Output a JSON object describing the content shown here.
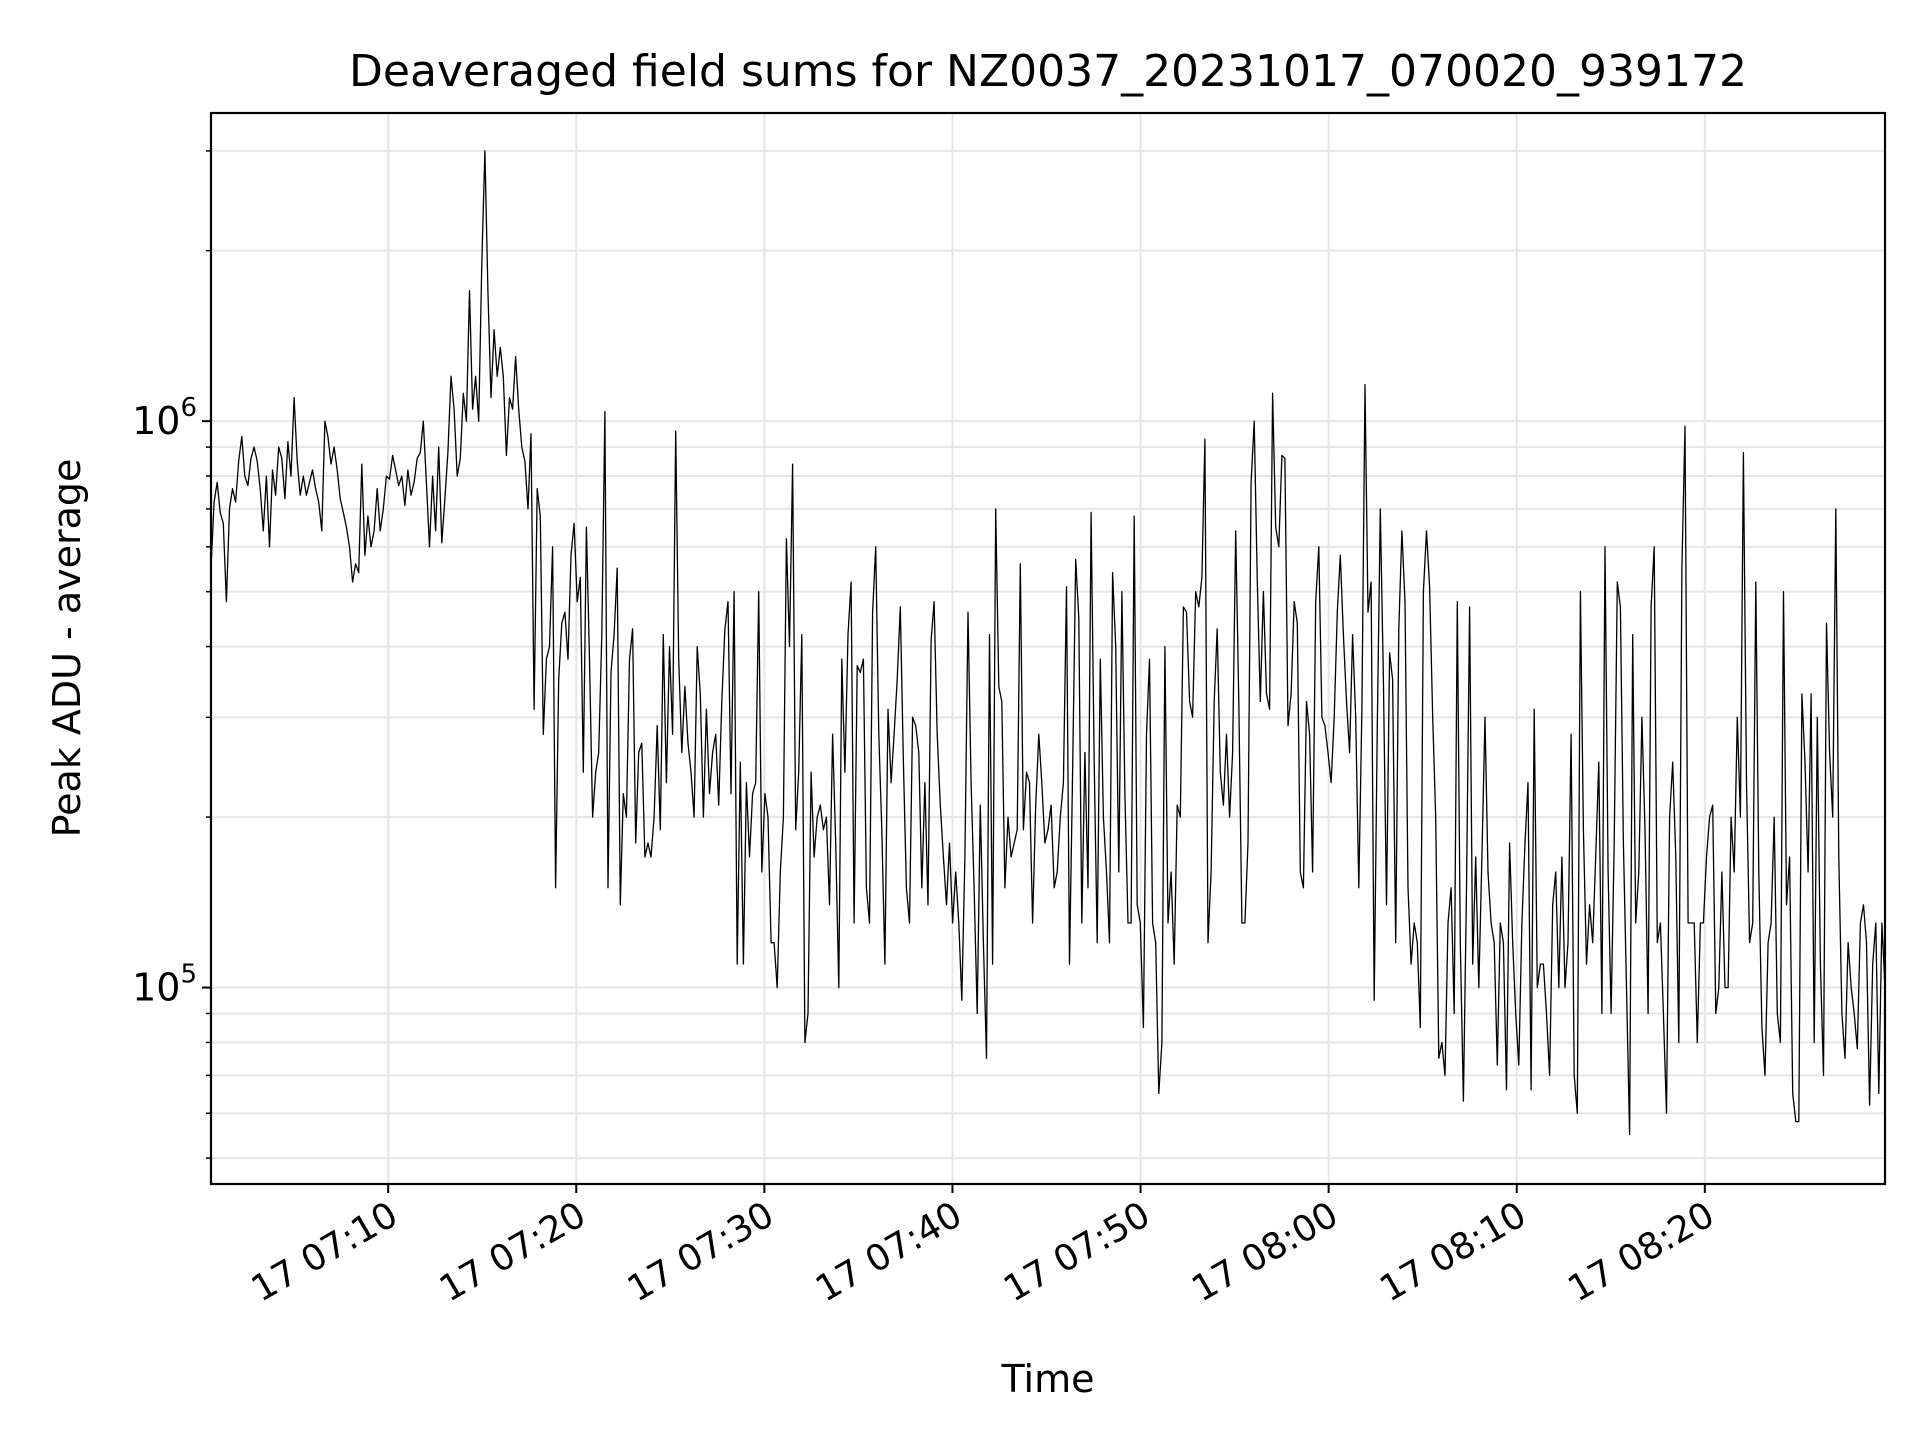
{
  "chart_data": {
    "type": "line",
    "title": "Deaveraged field sums for NZ0037_20231017_070020_939172",
    "xlabel": "Time",
    "ylabel": "Peak ADU - average",
    "yscale": "log",
    "ylim": [
      45000,
      3500000
    ],
    "xlim": [
      "17 07:00:35",
      "17 08:29:35"
    ],
    "grid": true,
    "line_color": "#000000",
    "x_ticks": [
      {
        "value": 10,
        "label": "17 07:10"
      },
      {
        "value": 20,
        "label": "17 07:20"
      },
      {
        "value": 30,
        "label": "17 07:30"
      },
      {
        "value": 40,
        "label": "17 07:40"
      },
      {
        "value": 50,
        "label": "17 07:50"
      },
      {
        "value": 60,
        "label": "17 08:00"
      },
      {
        "value": 70,
        "label": "17 08:10"
      },
      {
        "value": 80,
        "label": "17 08:20"
      }
    ],
    "y_major_ticks": [
      {
        "value": 100000,
        "base": "10",
        "exp": "5"
      },
      {
        "value": 1000000,
        "base": "10",
        "exp": "6"
      }
    ],
    "y_minor_ticks": [
      50000,
      60000,
      70000,
      80000,
      90000,
      200000,
      300000,
      400000,
      500000,
      600000,
      700000,
      800000,
      900000,
      2000000,
      3000000
    ],
    "series": [
      {
        "x_range_minutes": [
          0.58,
          89.58
        ],
        "values": [
          550000,
          720000,
          780000,
          690000,
          660000,
          480000,
          700000,
          760000,
          720000,
          850000,
          940000,
          800000,
          770000,
          860000,
          900000,
          850000,
          760000,
          640000,
          800000,
          600000,
          820000,
          740000,
          900000,
          860000,
          730000,
          920000,
          800000,
          1100000,
          850000,
          740000,
          800000,
          740000,
          780000,
          820000,
          760000,
          720000,
          640000,
          1000000,
          940000,
          840000,
          900000,
          820000,
          730000,
          690000,
          650000,
          600000,
          520000,
          560000,
          540000,
          840000,
          580000,
          680000,
          600000,
          640000,
          760000,
          640000,
          700000,
          800000,
          790000,
          870000,
          820000,
          770000,
          800000,
          710000,
          820000,
          740000,
          780000,
          860000,
          880000,
          1000000,
          780000,
          600000,
          800000,
          640000,
          900000,
          610000,
          730000,
          880000,
          1200000,
          1050000,
          800000,
          860000,
          1120000,
          1000000,
          1700000,
          1050000,
          1200000,
          1000000,
          1900000,
          3000000,
          1700000,
          1100000,
          1450000,
          1200000,
          1350000,
          1200000,
          870000,
          1100000,
          1050000,
          1300000,
          1050000,
          900000,
          850000,
          700000,
          950000,
          310000,
          760000,
          680000,
          280000,
          380000,
          400000,
          600000,
          150000,
          350000,
          440000,
          460000,
          380000,
          580000,
          660000,
          480000,
          530000,
          240000,
          650000,
          380000,
          200000,
          240000,
          260000,
          420000,
          1040000,
          150000,
          360000,
          420000,
          550000,
          140000,
          220000,
          200000,
          380000,
          430000,
          180000,
          260000,
          270000,
          170000,
          180000,
          170000,
          200000,
          290000,
          190000,
          420000,
          230000,
          400000,
          280000,
          960000,
          380000,
          260000,
          340000,
          270000,
          240000,
          200000,
          400000,
          330000,
          200000,
          310000,
          220000,
          260000,
          280000,
          210000,
          320000,
          430000,
          480000,
          220000,
          500000,
          110000,
          250000,
          110000,
          230000,
          170000,
          220000,
          230000,
          500000,
          160000,
          220000,
          200000,
          120000,
          120000,
          100000,
          160000,
          200000,
          620000,
          400000,
          840000,
          190000,
          240000,
          420000,
          80000,
          90000,
          240000,
          170000,
          200000,
          210000,
          190000,
          200000,
          140000,
          280000,
          180000,
          100000,
          380000,
          240000,
          420000,
          520000,
          130000,
          370000,
          360000,
          380000,
          150000,
          130000,
          460000,
          600000,
          280000,
          190000,
          110000,
          310000,
          230000,
          280000,
          350000,
          470000,
          250000,
          150000,
          130000,
          300000,
          290000,
          260000,
          150000,
          230000,
          140000,
          410000,
          480000,
          280000,
          210000,
          170000,
          140000,
          180000,
          130000,
          160000,
          130000,
          95000,
          170000,
          460000,
          230000,
          150000,
          90000,
          210000,
          120000,
          75000,
          420000,
          110000,
          700000,
          340000,
          320000,
          150000,
          200000,
          170000,
          180000,
          190000,
          560000,
          190000,
          240000,
          230000,
          130000,
          210000,
          280000,
          230000,
          180000,
          190000,
          210000,
          150000,
          160000,
          200000,
          230000,
          510000,
          110000,
          240000,
          570000,
          450000,
          130000,
          260000,
          150000,
          690000,
          250000,
          120000,
          380000,
          200000,
          160000,
          120000,
          540000,
          400000,
          160000,
          500000,
          220000,
          130000,
          130000,
          680000,
          140000,
          130000,
          85000,
          280000,
          380000,
          130000,
          120000,
          65000,
          80000,
          400000,
          130000,
          160000,
          110000,
          210000,
          200000,
          470000,
          460000,
          320000,
          300000,
          500000,
          470000,
          530000,
          930000,
          120000,
          160000,
          320000,
          430000,
          240000,
          210000,
          280000,
          200000,
          260000,
          640000,
          320000,
          130000,
          130000,
          180000,
          780000,
          1000000,
          520000,
          320000,
          500000,
          330000,
          310000,
          1120000,
          650000,
          600000,
          870000,
          860000,
          290000,
          330000,
          480000,
          440000,
          160000,
          150000,
          320000,
          280000,
          160000,
          480000,
          600000,
          300000,
          290000,
          260000,
          230000,
          300000,
          460000,
          580000,
          420000,
          320000,
          260000,
          420000,
          300000,
          150000,
          310000,
          1160000,
          460000,
          520000,
          95000,
          290000,
          700000,
          350000,
          140000,
          390000,
          350000,
          120000,
          430000,
          640000,
          480000,
          150000,
          110000,
          130000,
          120000,
          85000,
          500000,
          640000,
          510000,
          300000,
          200000,
          75000,
          80000,
          70000,
          130000,
          150000,
          90000,
          480000,
          120000,
          63000,
          150000,
          470000,
          110000,
          170000,
          100000,
          170000,
          300000,
          160000,
          130000,
          120000,
          73000,
          130000,
          120000,
          66000,
          180000,
          120000,
          90000,
          73000,
          130000,
          180000,
          230000,
          66000,
          310000,
          100000,
          110000,
          110000,
          90000,
          70000,
          140000,
          160000,
          100000,
          170000,
          100000,
          120000,
          280000,
          70000,
          60000,
          500000,
          190000,
          110000,
          140000,
          120000,
          170000,
          250000,
          90000,
          600000,
          160000,
          90000,
          180000,
          520000,
          470000,
          180000,
          100000,
          55000,
          420000,
          130000,
          160000,
          300000,
          190000,
          90000,
          470000,
          600000,
          120000,
          130000,
          90000,
          60000,
          200000,
          250000,
          170000,
          80000,
          550000,
          980000,
          130000,
          130000,
          130000,
          80000,
          130000,
          130000,
          170000,
          200000,
          210000,
          90000,
          100000,
          160000,
          100000,
          100000,
          200000,
          160000,
          300000,
          200000,
          880000,
          230000,
          120000,
          130000,
          520000,
          160000,
          85000,
          70000,
          120000,
          130000,
          200000,
          90000,
          80000,
          500000,
          140000,
          170000,
          65000,
          58000,
          58000,
          330000,
          250000,
          160000,
          330000,
          80000,
          300000,
          110000,
          70000,
          440000,
          260000,
          200000,
          700000,
          170000,
          90000,
          75000,
          120000,
          100000,
          90000,
          78000,
          130000,
          140000,
          120000,
          62000,
          110000,
          130000,
          65000,
          130000,
          100000
        ]
      }
    ]
  }
}
